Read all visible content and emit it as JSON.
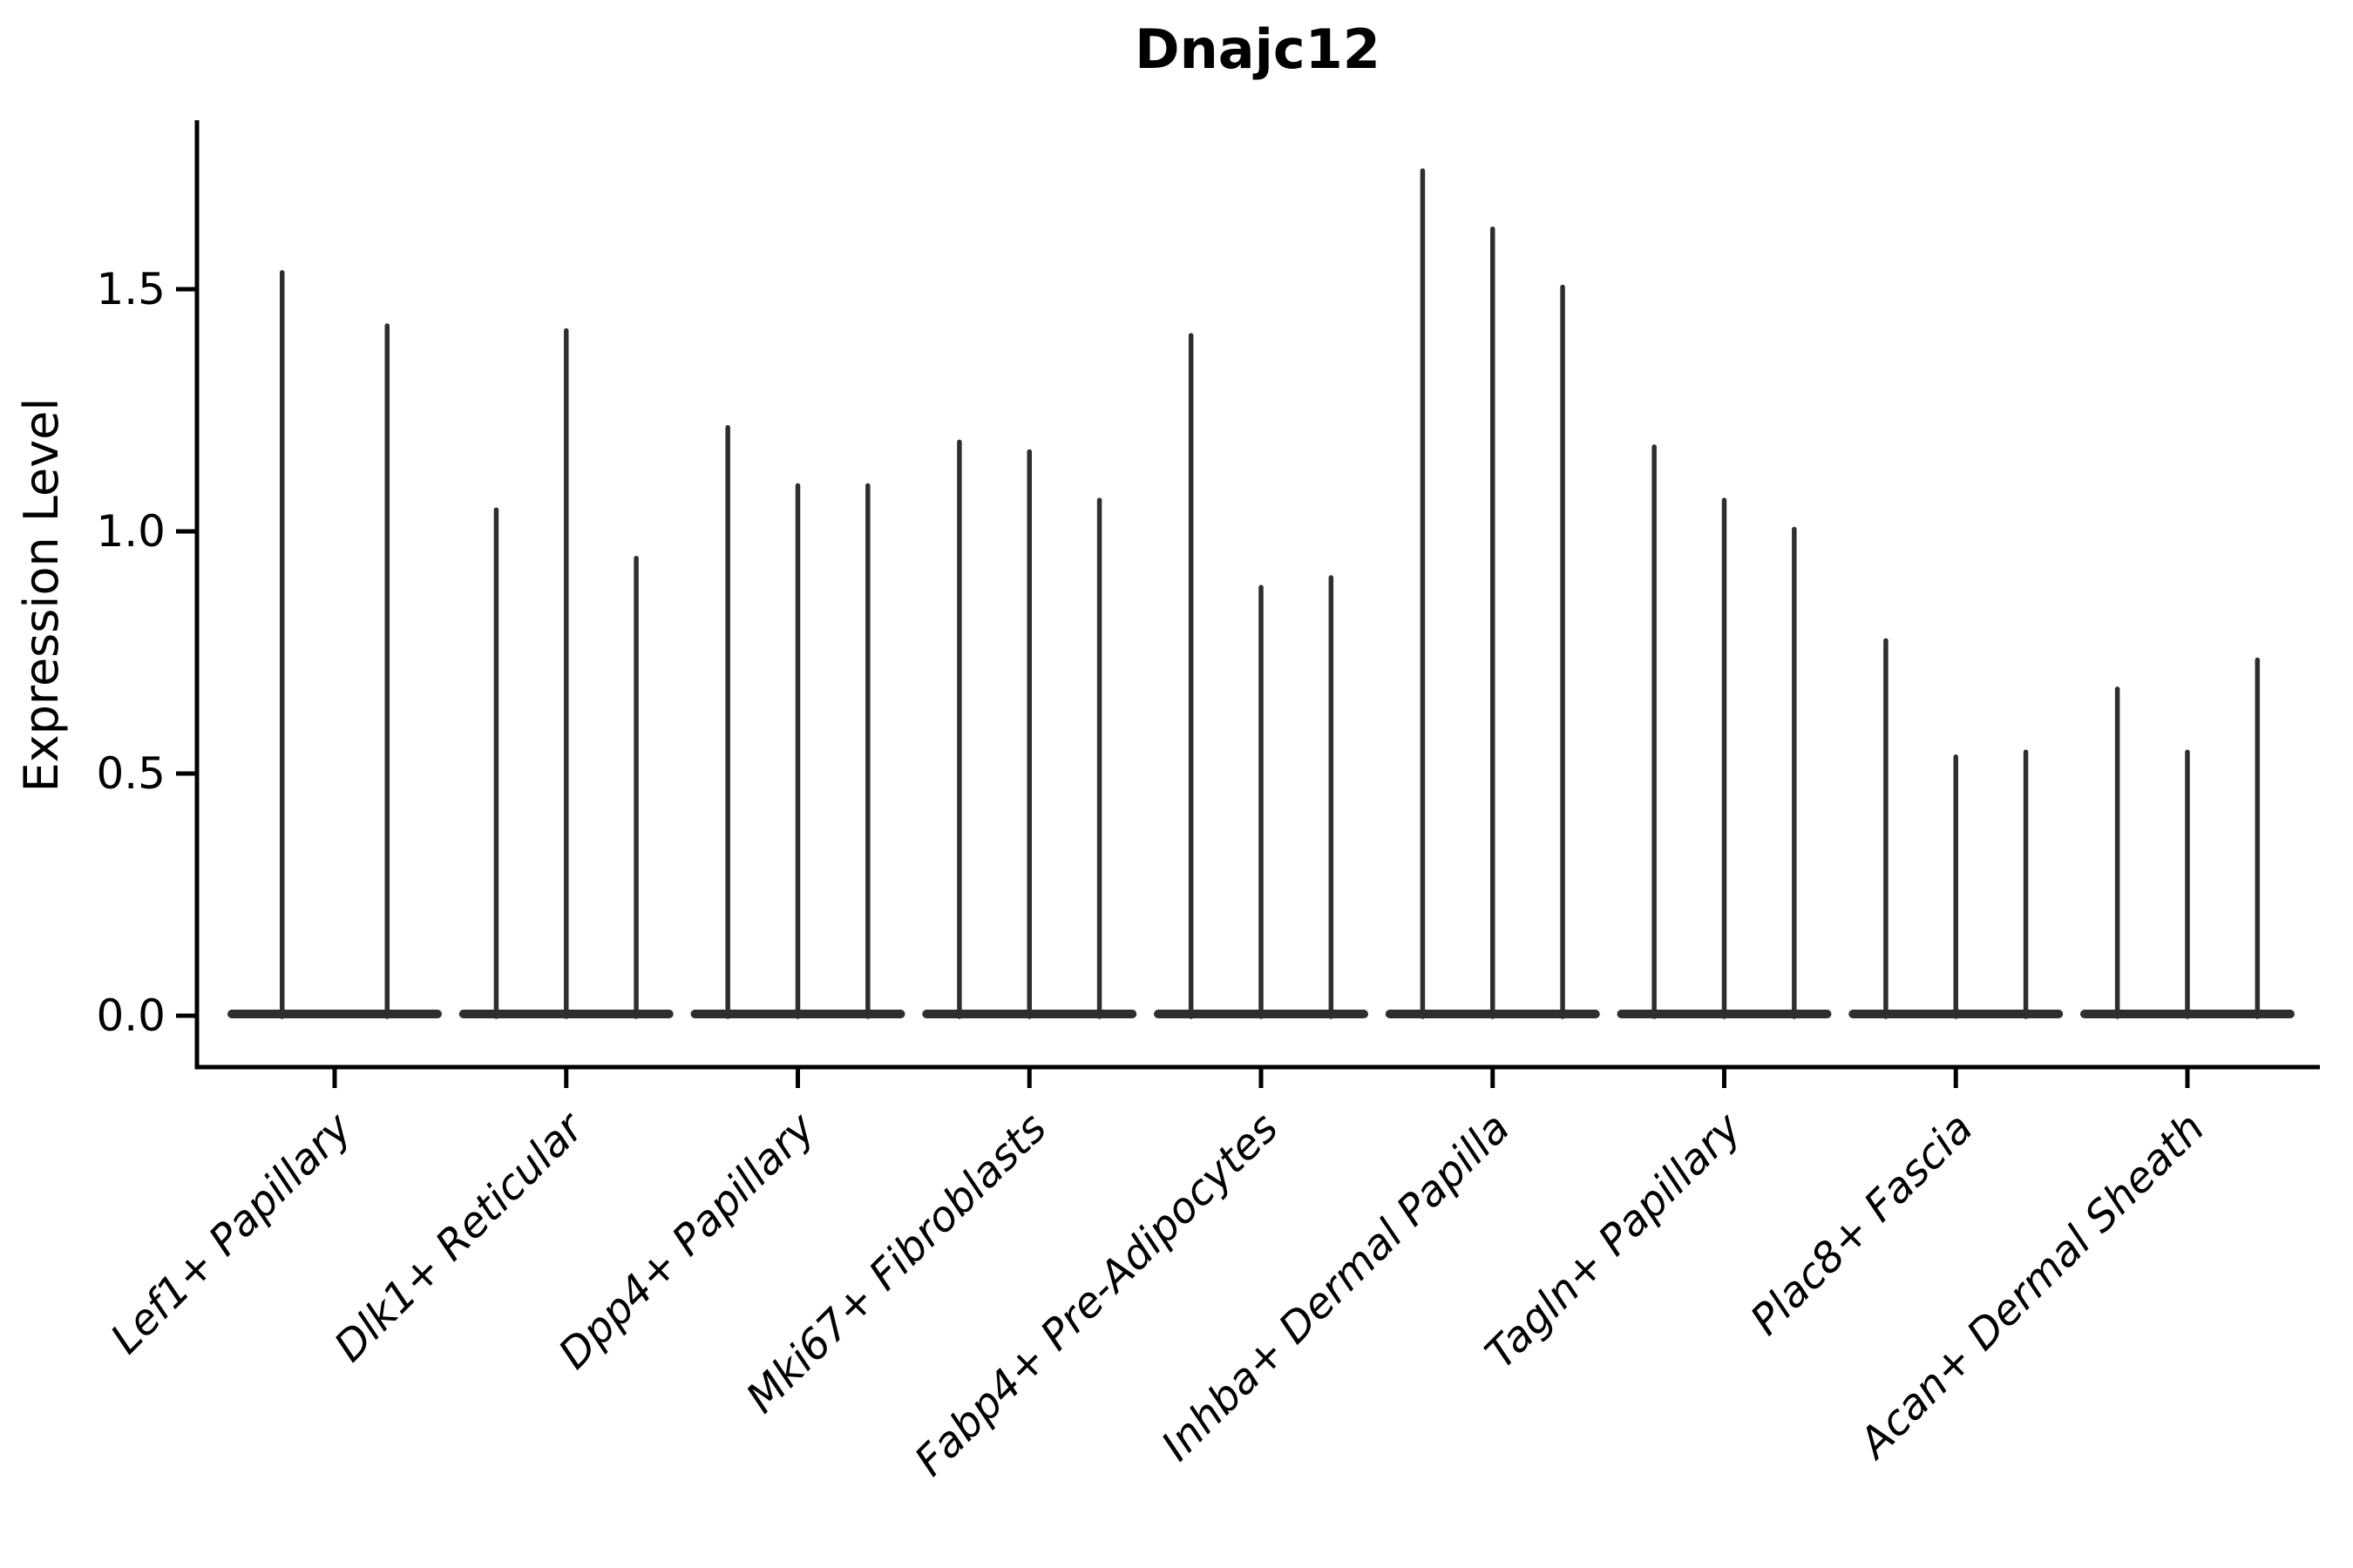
{
  "title": "Dnajc12",
  "chart_data": {
    "type": "violin",
    "title": "Dnajc12",
    "xlabel": "",
    "ylabel": "Expression Level",
    "ylim": [
      -0.11,
      1.85
    ],
    "yticks": [
      0.0,
      0.5,
      1.0,
      1.5
    ],
    "ytick_labels": [
      "0.0",
      "0.5",
      "1.0",
      "1.5"
    ],
    "grid": false,
    "legend": "none",
    "note": "Each cell-type group shows thin dodged violins; nearly all density mass sits at expression 0 (flat base blob) with a thin spike up to each violin's maximum expression value.",
    "categories": [
      "Lef1+ Papillary",
      "Dlk1+ Reticular",
      "Dpp4+ Papillary",
      "Mki67+ Fibroblasts",
      "Fabp4+ Pre-Adipocytes",
      "Inhba+ Dermal Papilla",
      "Tagln+ Papillary",
      "Plac8+ Fascia",
      "Acan+ Dermal Sheath"
    ],
    "groups": [
      {
        "label": "Lef1+ Papillary",
        "violin_maxima": [
          1.54,
          1.43
        ]
      },
      {
        "label": "Dlk1+ Reticular",
        "violin_maxima": [
          1.05,
          1.42,
          0.95
        ]
      },
      {
        "label": "Dpp4+ Papillary",
        "violin_maxima": [
          1.22,
          1.1,
          1.1
        ]
      },
      {
        "label": "Mki67+ Fibroblasts",
        "violin_maxima": [
          1.19,
          1.17,
          1.07
        ]
      },
      {
        "label": "Fabp4+ Pre-Adipocytes",
        "violin_maxima": [
          1.41,
          0.89,
          0.91
        ]
      },
      {
        "label": "Inhba+ Dermal Papilla",
        "violin_maxima": [
          1.75,
          1.63,
          1.51
        ]
      },
      {
        "label": "Tagln+ Papillary",
        "violin_maxima": [
          1.18,
          1.07,
          1.01
        ]
      },
      {
        "label": "Plac8+ Fascia",
        "violin_maxima": [
          0.78,
          0.54,
          0.55
        ]
      },
      {
        "label": "Acan+ Dermal Sheath",
        "violin_maxima": [
          0.68,
          0.55,
          0.74
        ]
      }
    ],
    "colors": {
      "violin": "#2e2e2e",
      "spine": "#000000",
      "text": "#000000",
      "background": "#ffffff"
    }
  }
}
